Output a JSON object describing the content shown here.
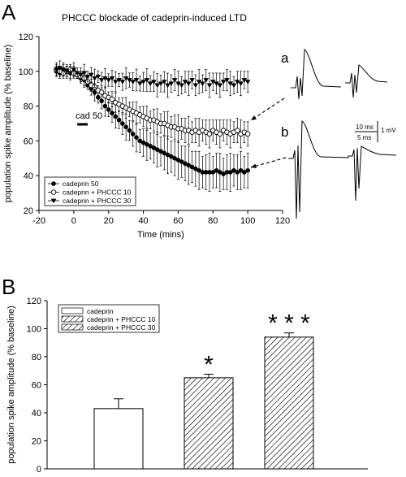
{
  "chart_data": [
    {
      "panel": "A",
      "type": "scatter",
      "title": "PHCCC blockade of cadeprin-induced LTD",
      "xlabel": "Time (mins)",
      "ylabel": "population spike amplitude (% baseline)",
      "xlim": [
        -20,
        120
      ],
      "ylim": [
        20,
        120
      ],
      "xticks": [
        -20,
        0,
        20,
        40,
        60,
        80,
        100,
        120
      ],
      "yticks": [
        20,
        40,
        60,
        80,
        100,
        120
      ],
      "legend_position": "bottom-left",
      "annotation": "cad 50",
      "annotation_bar_x": [
        2,
        8
      ],
      "series": [
        {
          "name": "cadeprin 50",
          "marker": "filled-circle",
          "x": [
            -10,
            -8,
            -6,
            -4,
            -2,
            0,
            2,
            4,
            6,
            8,
            10,
            12,
            14,
            16,
            18,
            20,
            22,
            24,
            26,
            28,
            30,
            32,
            34,
            36,
            38,
            40,
            42,
            44,
            46,
            48,
            50,
            52,
            54,
            56,
            58,
            60,
            62,
            64,
            66,
            68,
            70,
            72,
            74,
            76,
            78,
            80,
            82,
            84,
            86,
            88,
            90,
            92,
            94,
            96,
            98,
            100
          ],
          "y": [
            100,
            99,
            101,
            100,
            99,
            100,
            98,
            96,
            95,
            92,
            90,
            88,
            85,
            83,
            80,
            78,
            76,
            74,
            72,
            70,
            68,
            66,
            64,
            62,
            60,
            59,
            58,
            57,
            56,
            55,
            54,
            53,
            52,
            51,
            50,
            49,
            48,
            47,
            46,
            45,
            44,
            43,
            42,
            42,
            42,
            42,
            43,
            42,
            41,
            42,
            42,
            43,
            42,
            43,
            42,
            43
          ]
        },
        {
          "name": "cadeprin + PHCCC 10",
          "marker": "open-circle",
          "x": [
            -10,
            -8,
            -6,
            -4,
            -2,
            0,
            2,
            4,
            6,
            8,
            10,
            12,
            14,
            16,
            18,
            20,
            22,
            24,
            26,
            28,
            30,
            32,
            34,
            36,
            38,
            40,
            42,
            44,
            46,
            48,
            50,
            52,
            54,
            56,
            58,
            60,
            62,
            64,
            66,
            68,
            70,
            72,
            74,
            76,
            78,
            80,
            82,
            84,
            86,
            88,
            90,
            92,
            94,
            96,
            98,
            100
          ],
          "y": [
            101,
            100,
            99,
            100,
            101,
            99,
            98,
            97,
            96,
            94,
            92,
            91,
            89,
            88,
            86,
            85,
            84,
            82,
            81,
            80,
            79,
            78,
            77,
            76,
            75,
            74,
            73,
            72,
            72,
            71,
            70,
            70,
            69,
            68,
            68,
            67,
            67,
            66,
            66,
            65,
            66,
            65,
            66,
            65,
            64,
            66,
            65,
            64,
            66,
            65,
            64,
            65,
            66,
            64,
            65,
            64
          ]
        },
        {
          "name": "cadeprin + PHCCC 30",
          "marker": "filled-triangle-down",
          "x": [
            -10,
            -8,
            -6,
            -4,
            -2,
            0,
            2,
            4,
            6,
            8,
            10,
            12,
            14,
            16,
            18,
            20,
            22,
            24,
            26,
            28,
            30,
            32,
            34,
            36,
            38,
            40,
            42,
            44,
            46,
            48,
            50,
            52,
            54,
            56,
            58,
            60,
            62,
            64,
            66,
            68,
            70,
            72,
            74,
            76,
            78,
            80,
            82,
            84,
            86,
            88,
            90,
            92,
            94,
            96,
            98,
            100
          ],
          "y": [
            101,
            102,
            101,
            100,
            99,
            101,
            99,
            98,
            99,
            97,
            98,
            96,
            97,
            95,
            96,
            95,
            96,
            94,
            95,
            94,
            96,
            95,
            94,
            95,
            93,
            94,
            95,
            93,
            94,
            92,
            93,
            94,
            92,
            93,
            95,
            93,
            92,
            94,
            93,
            95,
            92,
            94,
            93,
            95,
            92,
            94,
            93,
            92,
            94,
            95,
            93,
            92,
            94,
            93,
            95,
            94
          ]
        }
      ],
      "insets": [
        {
          "label": "a",
          "traces": 2
        },
        {
          "label": "b",
          "traces": 2
        }
      ],
      "scale_bar_labels": [
        "10 ms",
        "5 ms",
        "1 mV"
      ]
    },
    {
      "panel": "B",
      "type": "bar",
      "ylabel": "population spike amplitude (% baseline)",
      "ylim": [
        0,
        120
      ],
      "yticks": [
        0,
        20,
        40,
        60,
        80,
        100,
        120
      ],
      "legend_position": "top-left",
      "categories": [
        "cadeprin",
        "cadeprin + PHCCC 10",
        "cadeprin + PHCCC 30"
      ],
      "values": [
        43,
        65,
        94
      ],
      "errors": [
        7,
        2.5,
        3
      ],
      "fills": [
        "white",
        "hatch",
        "hatch"
      ],
      "significance": [
        "",
        "*",
        "* * *"
      ]
    }
  ],
  "panel_labels": {
    "a": "A",
    "b": "B"
  }
}
